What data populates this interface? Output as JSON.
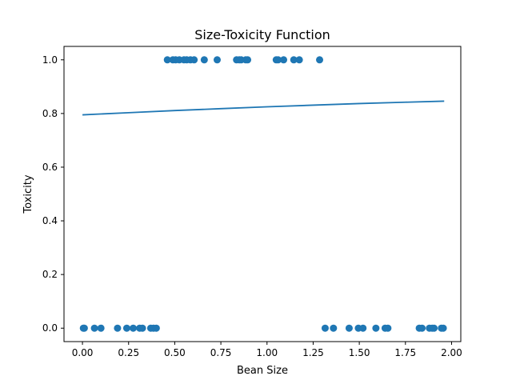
{
  "chart_data": {
    "type": "scatter",
    "title": "Size-Toxicity Function",
    "xlabel": "Bean Size",
    "ylabel": "Toxicity",
    "xlim": [
      -0.1,
      2.05
    ],
    "ylim": [
      -0.05,
      1.05
    ],
    "x_ticks": [
      {
        "value": 0.0,
        "label": "0.00"
      },
      {
        "value": 0.25,
        "label": "0.25"
      },
      {
        "value": 0.5,
        "label": "0.50"
      },
      {
        "value": 0.75,
        "label": "0.75"
      },
      {
        "value": 1.0,
        "label": "1.00"
      },
      {
        "value": 1.25,
        "label": "1.25"
      },
      {
        "value": 1.5,
        "label": "1.50"
      },
      {
        "value": 1.75,
        "label": "1.75"
      },
      {
        "value": 2.0,
        "label": "2.00"
      }
    ],
    "y_ticks": [
      {
        "value": 0.0,
        "label": "0.0"
      },
      {
        "value": 0.2,
        "label": "0.2"
      },
      {
        "value": 0.4,
        "label": "0.4"
      },
      {
        "value": 0.6,
        "label": "0.6"
      },
      {
        "value": 0.8,
        "label": "0.8"
      },
      {
        "value": 1.0,
        "label": "1.0"
      }
    ],
    "grid": false,
    "color": "#1f77b4",
    "scatter": {
      "points": [
        {
          "x": 0.005,
          "y": 0
        },
        {
          "x": 0.01,
          "y": 0
        },
        {
          "x": 0.065,
          "y": 0
        },
        {
          "x": 0.1,
          "y": 0
        },
        {
          "x": 0.19,
          "y": 0
        },
        {
          "x": 0.24,
          "y": 0
        },
        {
          "x": 0.275,
          "y": 0
        },
        {
          "x": 0.31,
          "y": 0
        },
        {
          "x": 0.325,
          "y": 0
        },
        {
          "x": 0.37,
          "y": 0
        },
        {
          "x": 0.385,
          "y": 0
        },
        {
          "x": 0.4,
          "y": 0
        },
        {
          "x": 0.46,
          "y": 1
        },
        {
          "x": 0.49,
          "y": 1
        },
        {
          "x": 0.505,
          "y": 1
        },
        {
          "x": 0.525,
          "y": 1
        },
        {
          "x": 0.55,
          "y": 1
        },
        {
          "x": 0.565,
          "y": 1
        },
        {
          "x": 0.585,
          "y": 1
        },
        {
          "x": 0.605,
          "y": 1
        },
        {
          "x": 0.66,
          "y": 1
        },
        {
          "x": 0.73,
          "y": 1
        },
        {
          "x": 0.835,
          "y": 1
        },
        {
          "x": 0.85,
          "y": 1
        },
        {
          "x": 0.86,
          "y": 1
        },
        {
          "x": 0.885,
          "y": 1
        },
        {
          "x": 0.895,
          "y": 1
        },
        {
          "x": 1.05,
          "y": 1
        },
        {
          "x": 1.06,
          "y": 1
        },
        {
          "x": 1.09,
          "y": 1
        },
        {
          "x": 1.145,
          "y": 1
        },
        {
          "x": 1.175,
          "y": 1
        },
        {
          "x": 1.285,
          "y": 1
        },
        {
          "x": 1.315,
          "y": 0
        },
        {
          "x": 1.36,
          "y": 0
        },
        {
          "x": 1.445,
          "y": 0
        },
        {
          "x": 1.495,
          "y": 0
        },
        {
          "x": 1.52,
          "y": 0
        },
        {
          "x": 1.59,
          "y": 0
        },
        {
          "x": 1.64,
          "y": 0
        },
        {
          "x": 1.655,
          "y": 0
        },
        {
          "x": 1.825,
          "y": 0
        },
        {
          "x": 1.84,
          "y": 0
        },
        {
          "x": 1.88,
          "y": 0
        },
        {
          "x": 1.895,
          "y": 0
        },
        {
          "x": 1.905,
          "y": 0
        },
        {
          "x": 1.945,
          "y": 0
        },
        {
          "x": 1.955,
          "y": 0
        }
      ]
    },
    "line": {
      "points": [
        {
          "x": 0.0,
          "y": 0.795
        },
        {
          "x": 0.25,
          "y": 0.803
        },
        {
          "x": 0.5,
          "y": 0.811
        },
        {
          "x": 0.75,
          "y": 0.818
        },
        {
          "x": 1.0,
          "y": 0.825
        },
        {
          "x": 1.25,
          "y": 0.831
        },
        {
          "x": 1.5,
          "y": 0.837
        },
        {
          "x": 1.75,
          "y": 0.842
        },
        {
          "x": 1.96,
          "y": 0.846
        }
      ]
    }
  }
}
